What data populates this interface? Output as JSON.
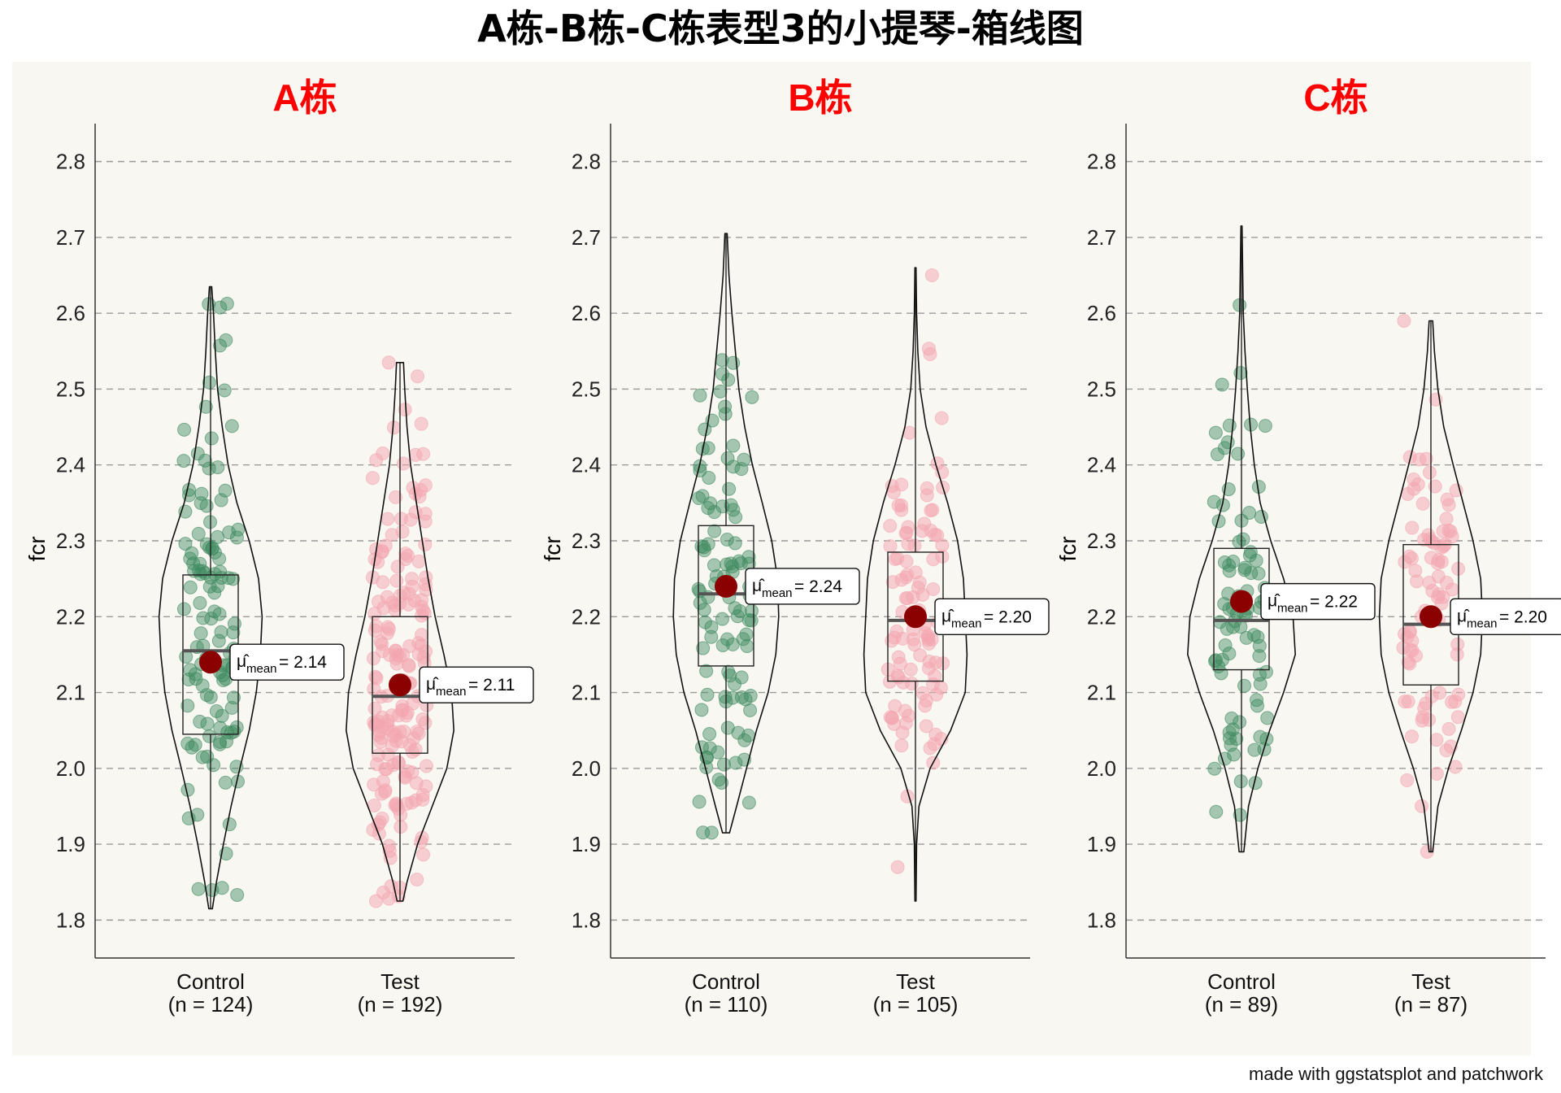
{
  "title": "A栋-B栋-C栋表型3的小提琴-箱线图",
  "caption": "made with ggstatsplot and patchwork",
  "colors": {
    "control": "#3f8a5f",
    "test": "#f4a6b0",
    "mean": "#8b0000",
    "panel_title": "#ff0000"
  },
  "chart_data": [
    {
      "type": "violin-box",
      "panel_title": "A栋",
      "ylabel": "fcr",
      "ylim": [
        1.75,
        2.85
      ],
      "yticks": [
        1.8,
        1.9,
        2.0,
        2.1,
        2.2,
        2.3,
        2.4,
        2.5,
        2.6,
        2.7,
        2.8
      ],
      "grid": "horizontal dashed",
      "groups": [
        {
          "name": "Control",
          "n_label": "(n = 124)",
          "min": 1.815,
          "q1": 2.045,
          "median": 2.155,
          "q3": 2.255,
          "max": 2.635,
          "mean": 2.14,
          "mean_label": "2.14",
          "density": [
            [
              1.815,
              0.03
            ],
            [
              1.85,
              0.1
            ],
            [
              1.9,
              0.22
            ],
            [
              1.95,
              0.35
            ],
            [
              2.0,
              0.5
            ],
            [
              2.05,
              0.66
            ],
            [
              2.1,
              0.78
            ],
            [
              2.15,
              0.85
            ],
            [
              2.2,
              0.88
            ],
            [
              2.25,
              0.82
            ],
            [
              2.3,
              0.66
            ],
            [
              2.35,
              0.45
            ],
            [
              2.4,
              0.3
            ],
            [
              2.45,
              0.2
            ],
            [
              2.5,
              0.12
            ],
            [
              2.55,
              0.08
            ],
            [
              2.6,
              0.05
            ],
            [
              2.635,
              0.02
            ]
          ]
        },
        {
          "name": "Test",
          "n_label": "(n = 192)",
          "min": 1.825,
          "q1": 2.02,
          "median": 2.095,
          "q3": 2.2,
          "max": 2.535,
          "mean": 2.11,
          "mean_label": "2.11",
          "density": [
            [
              1.825,
              0.05
            ],
            [
              1.85,
              0.12
            ],
            [
              1.9,
              0.3
            ],
            [
              1.95,
              0.55
            ],
            [
              2.0,
              0.8
            ],
            [
              2.05,
              0.92
            ],
            [
              2.1,
              0.88
            ],
            [
              2.15,
              0.75
            ],
            [
              2.2,
              0.6
            ],
            [
              2.25,
              0.48
            ],
            [
              2.3,
              0.38
            ],
            [
              2.35,
              0.28
            ],
            [
              2.4,
              0.18
            ],
            [
              2.45,
              0.12
            ],
            [
              2.5,
              0.08
            ],
            [
              2.535,
              0.06
            ]
          ]
        }
      ]
    },
    {
      "type": "violin-box",
      "panel_title": "B栋",
      "ylabel": "fcr",
      "ylim": [
        1.75,
        2.85
      ],
      "yticks": [
        1.8,
        1.9,
        2.0,
        2.1,
        2.2,
        2.3,
        2.4,
        2.5,
        2.6,
        2.7,
        2.8
      ],
      "grid": "horizontal dashed",
      "groups": [
        {
          "name": "Control",
          "n_label": "(n = 110)",
          "min": 1.915,
          "q1": 2.135,
          "median": 2.23,
          "q3": 2.32,
          "max": 2.705,
          "mean": 2.24,
          "mean_label": "2.24",
          "density": [
            [
              1.915,
              0.06
            ],
            [
              1.95,
              0.18
            ],
            [
              2.0,
              0.35
            ],
            [
              2.05,
              0.52
            ],
            [
              2.1,
              0.72
            ],
            [
              2.15,
              0.85
            ],
            [
              2.2,
              0.9
            ],
            [
              2.25,
              0.88
            ],
            [
              2.3,
              0.78
            ],
            [
              2.35,
              0.62
            ],
            [
              2.4,
              0.45
            ],
            [
              2.45,
              0.32
            ],
            [
              2.5,
              0.22
            ],
            [
              2.55,
              0.16
            ],
            [
              2.6,
              0.1
            ],
            [
              2.65,
              0.05
            ],
            [
              2.705,
              0.02
            ]
          ]
        },
        {
          "name": "Test",
          "n_label": "(n = 105)",
          "min": 1.825,
          "q1": 2.115,
          "median": 2.195,
          "q3": 2.285,
          "max": 2.66,
          "mean": 2.2,
          "mean_label": "2.20",
          "density": [
            [
              1.825,
              0.01
            ],
            [
              1.9,
              0.02
            ],
            [
              1.95,
              0.06
            ],
            [
              2.0,
              0.25
            ],
            [
              2.05,
              0.6
            ],
            [
              2.1,
              0.85
            ],
            [
              2.15,
              0.88
            ],
            [
              2.2,
              0.85
            ],
            [
              2.25,
              0.82
            ],
            [
              2.3,
              0.72
            ],
            [
              2.35,
              0.55
            ],
            [
              2.4,
              0.35
            ],
            [
              2.45,
              0.18
            ],
            [
              2.5,
              0.08
            ],
            [
              2.55,
              0.04
            ],
            [
              2.6,
              0.02
            ],
            [
              2.66,
              0.01
            ]
          ]
        }
      ]
    },
    {
      "type": "violin-box",
      "panel_title": "C栋",
      "ylabel": "fcr",
      "ylim": [
        1.75,
        2.85
      ],
      "yticks": [
        1.8,
        1.9,
        2.0,
        2.1,
        2.2,
        2.3,
        2.4,
        2.5,
        2.6,
        2.7,
        2.8
      ],
      "grid": "horizontal dashed",
      "groups": [
        {
          "name": "Control",
          "n_label": "(n = 89)",
          "min": 1.89,
          "q1": 2.13,
          "median": 2.195,
          "q3": 2.29,
          "max": 2.715,
          "mean": 2.22,
          "mean_label": "2.22",
          "density": [
            [
              1.89,
              0.04
            ],
            [
              1.95,
              0.12
            ],
            [
              2.0,
              0.28
            ],
            [
              2.05,
              0.48
            ],
            [
              2.1,
              0.72
            ],
            [
              2.15,
              0.92
            ],
            [
              2.2,
              0.88
            ],
            [
              2.25,
              0.72
            ],
            [
              2.3,
              0.5
            ],
            [
              2.35,
              0.32
            ],
            [
              2.4,
              0.22
            ],
            [
              2.45,
              0.15
            ],
            [
              2.5,
              0.1
            ],
            [
              2.55,
              0.06
            ],
            [
              2.6,
              0.03
            ],
            [
              2.715,
              0.01
            ]
          ]
        },
        {
          "name": "Test",
          "n_label": "(n = 87)",
          "min": 1.89,
          "q1": 2.11,
          "median": 2.19,
          "q3": 2.295,
          "max": 2.59,
          "mean": 2.2,
          "mean_label": "2.20",
          "density": [
            [
              1.89,
              0.03
            ],
            [
              1.95,
              0.12
            ],
            [
              2.0,
              0.3
            ],
            [
              2.05,
              0.52
            ],
            [
              2.1,
              0.72
            ],
            [
              2.15,
              0.85
            ],
            [
              2.2,
              0.88
            ],
            [
              2.25,
              0.85
            ],
            [
              2.3,
              0.72
            ],
            [
              2.35,
              0.55
            ],
            [
              2.4,
              0.38
            ],
            [
              2.45,
              0.22
            ],
            [
              2.5,
              0.12
            ],
            [
              2.55,
              0.06
            ],
            [
              2.59,
              0.03
            ]
          ]
        }
      ]
    }
  ]
}
